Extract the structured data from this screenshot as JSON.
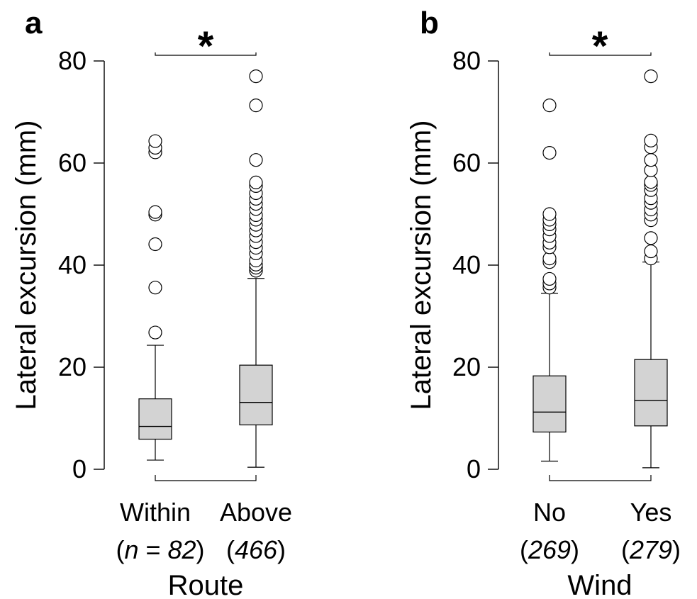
{
  "chart_data": [
    {
      "panel": "a",
      "type": "box",
      "xlabel": "Route",
      "ylabel": "Lateral excursion (mm)",
      "ylim": [
        0,
        80
      ],
      "yticks": [
        0,
        20,
        40,
        60,
        80
      ],
      "significance": "*",
      "groups": [
        {
          "label": "Within",
          "n_prefix": "(",
          "n_var": "n",
          "n_eq": " = ",
          "n_value": "82",
          "n_suffix": ")",
          "whisker_low": 1.8,
          "q1": 5.9,
          "median": 8.4,
          "q3": 13.8,
          "whisker_high": 24.3,
          "outliers": [
            26.8,
            35.6,
            44.1,
            49.9,
            50.4,
            62.1,
            63.0,
            64.3
          ]
        },
        {
          "label": "Above",
          "n_prefix": "(",
          "n_var": "",
          "n_eq": "",
          "n_value": "466",
          "n_suffix": ")",
          "whisker_low": 0.4,
          "q1": 8.7,
          "median": 13.1,
          "q3": 20.4,
          "whisker_high": 37.4,
          "outliers": [
            38.9,
            39.5,
            40.1,
            40.9,
            42.3,
            43.4,
            44.5,
            45.7,
            46.8,
            47.9,
            48.9,
            49.8,
            51.0,
            52.0,
            53.0,
            54.1,
            55.5,
            56.2,
            60.6,
            71.3,
            77.0
          ]
        }
      ]
    },
    {
      "panel": "b",
      "type": "box",
      "xlabel": "Wind",
      "ylabel": "Lateral excursion (mm)",
      "ylim": [
        0,
        80
      ],
      "yticks": [
        0,
        20,
        40,
        60,
        80
      ],
      "significance": "*",
      "groups": [
        {
          "label": "No",
          "n_prefix": "(",
          "n_var": "",
          "n_eq": "",
          "n_value": "269",
          "n_suffix": ")",
          "whisker_low": 1.6,
          "q1": 7.3,
          "median": 11.2,
          "q3": 18.3,
          "whisker_high": 34.5,
          "outliers": [
            35.6,
            36.4,
            37.3,
            40.6,
            41.3,
            43.5,
            44.4,
            45.7,
            47.0,
            48.0,
            48.9,
            50.0,
            62.0,
            71.3
          ]
        },
        {
          "label": "Yes",
          "n_prefix": "(",
          "n_var": "",
          "n_eq": "",
          "n_value": "279",
          "n_suffix": ")",
          "whisker_low": 0.3,
          "q1": 8.5,
          "median": 13.5,
          "q3": 21.5,
          "whisker_high": 40.6,
          "outliers": [
            41.3,
            42.7,
            45.3,
            48.8,
            49.9,
            50.9,
            52.2,
            53.1,
            54.7,
            55.7,
            56.3,
            58.6,
            60.6,
            63.1,
            64.4,
            77.0
          ]
        }
      ]
    }
  ]
}
